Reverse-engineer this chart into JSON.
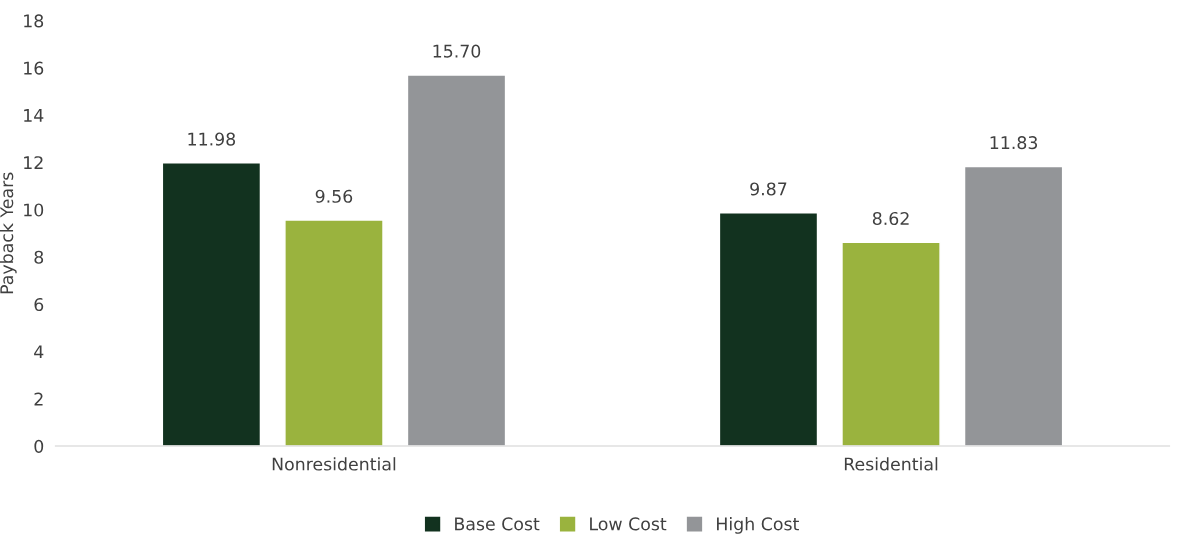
{
  "chart_data": {
    "type": "bar",
    "ylabel": "Payback Years",
    "categories": [
      "Nonresidential",
      "Residential"
    ],
    "series": [
      {
        "name": "Base Cost",
        "color": "#12321f",
        "values": [
          11.98,
          9.87
        ],
        "value_labels": [
          "11.98",
          "9.87"
        ]
      },
      {
        "name": "Low Cost",
        "color": "#9ab33e",
        "values": [
          9.56,
          8.62
        ],
        "value_labels": [
          "9.56",
          "8.62"
        ]
      },
      {
        "name": "High Cost",
        "color": "#939598",
        "values": [
          15.7,
          11.83
        ],
        "value_labels": [
          "15.70",
          "11.83"
        ]
      }
    ],
    "ylim": [
      0,
      18
    ],
    "yticks": [
      0,
      2,
      4,
      6,
      8,
      10,
      12,
      14,
      16,
      18
    ],
    "grid": false,
    "legend": "bottom"
  }
}
